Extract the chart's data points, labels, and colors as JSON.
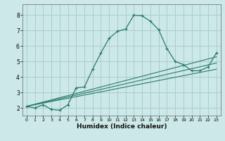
{
  "xlabel": "Humidex (Indice chaleur)",
  "ylabel": "",
  "bg_color": "#cce8e8",
  "line_color": "#2a7a6a",
  "grid_color": "#aacece",
  "xlim": [
    -0.5,
    23.5
  ],
  "ylim": [
    1.5,
    8.7
  ],
  "xticks": [
    0,
    1,
    2,
    3,
    4,
    5,
    6,
    7,
    8,
    9,
    10,
    11,
    12,
    13,
    14,
    15,
    16,
    17,
    18,
    19,
    20,
    21,
    22,
    23
  ],
  "yticks": [
    2,
    3,
    4,
    5,
    6,
    7,
    8
  ],
  "series": [
    {
      "x": [
        0,
        1,
        2,
        3,
        4,
        5,
        6,
        7,
        8,
        9,
        10,
        11,
        12,
        13,
        14,
        15,
        16,
        17,
        18,
        19,
        20,
        21,
        22,
        23
      ],
      "y": [
        2.1,
        2.0,
        2.2,
        1.9,
        1.85,
        2.2,
        3.3,
        3.35,
        4.5,
        5.55,
        6.5,
        6.95,
        7.1,
        8.0,
        7.95,
        7.6,
        7.05,
        5.85,
        5.0,
        4.8,
        4.4,
        4.4,
        4.65,
        5.55
      ],
      "marker": true
    },
    {
      "x": [
        0,
        23
      ],
      "y": [
        2.1,
        5.3
      ],
      "marker": false
    },
    {
      "x": [
        0,
        23
      ],
      "y": [
        2.1,
        4.9
      ],
      "marker": false
    },
    {
      "x": [
        0,
        23
      ],
      "y": [
        2.1,
        4.5
      ],
      "marker": false
    }
  ]
}
